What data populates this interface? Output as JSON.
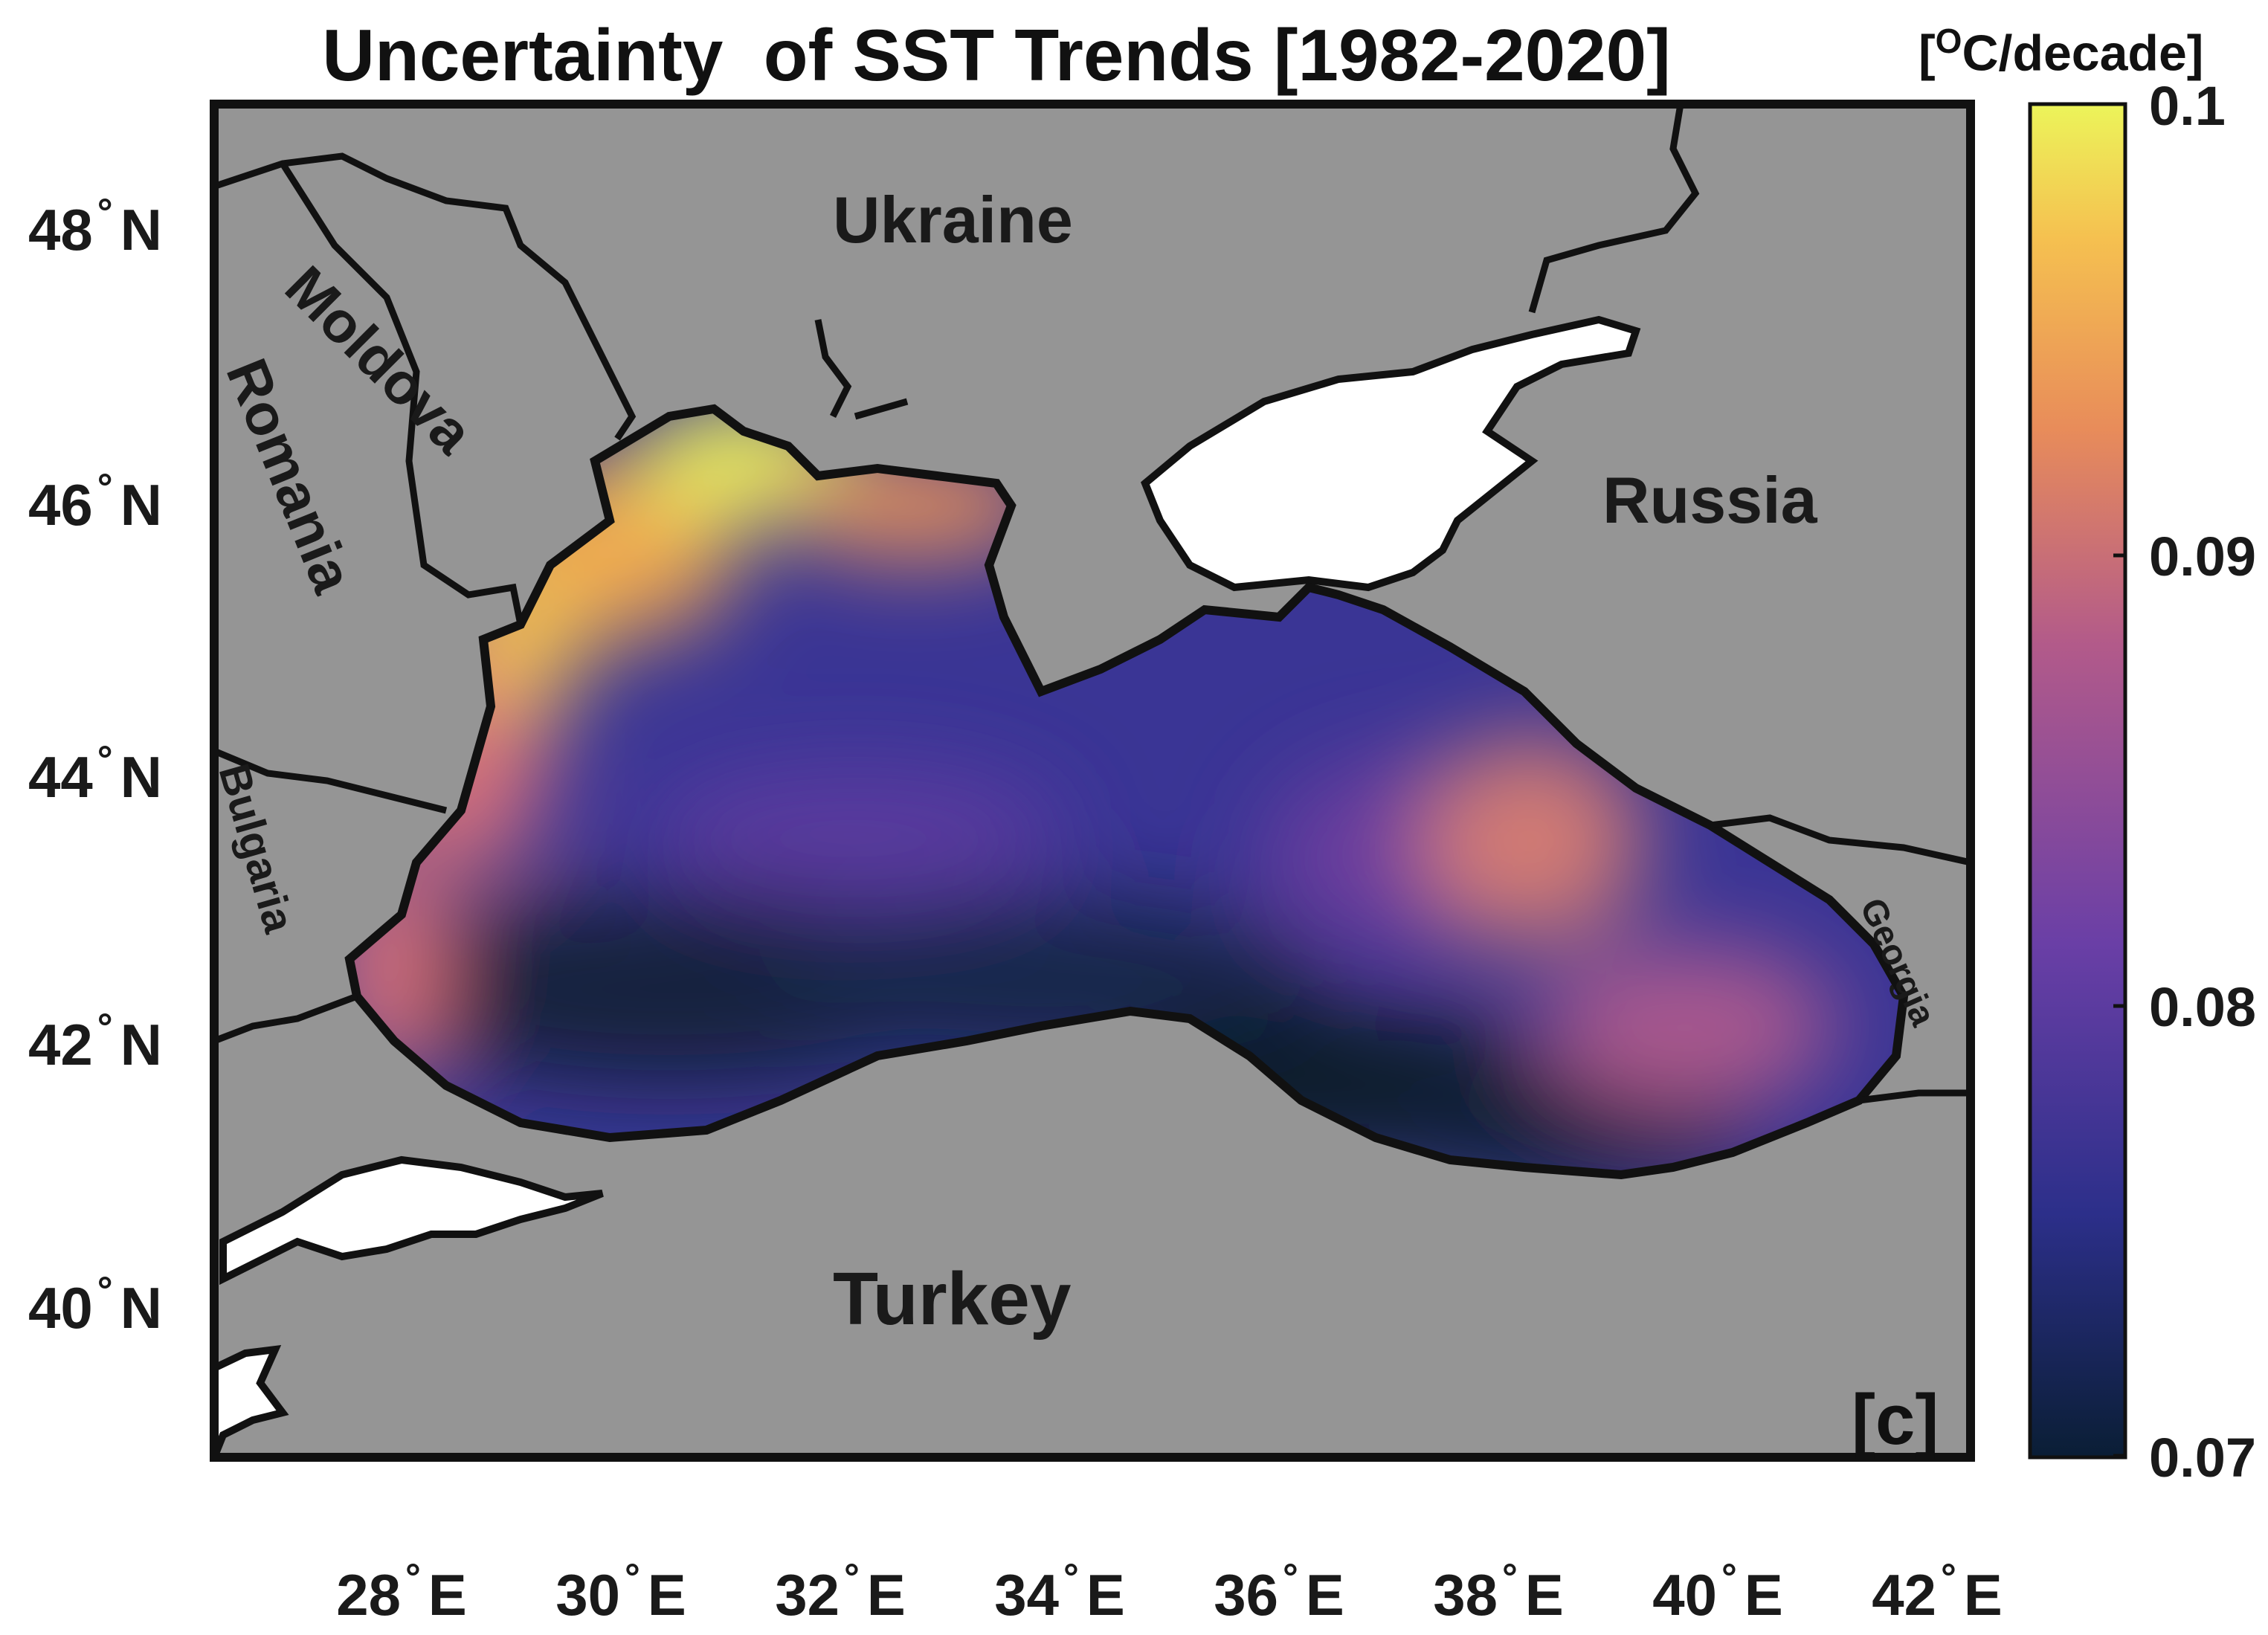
{
  "title": "Uncertainty  of SST Trends [1982-2020]",
  "colorbar": {
    "unit_prefix": "[",
    "unit_sup": "O",
    "unit_suffix": "C/decade]",
    "ticks": [
      "0.1",
      "0.09",
      "0.08",
      "0.07"
    ],
    "range": [
      0.07,
      0.1
    ],
    "colors": [
      "#0a1e35",
      "#2c2f8a",
      "#6a3fa6",
      "#b25a8a",
      "#e88c5a",
      "#f5c050",
      "#ecf45a"
    ]
  },
  "axes": {
    "lat_ticks": [
      {
        "value": "48",
        "hemi": "N"
      },
      {
        "value": "46",
        "hemi": "N"
      },
      {
        "value": "44",
        "hemi": "N"
      },
      {
        "value": "42",
        "hemi": "N"
      },
      {
        "value": "40",
        "hemi": "N"
      }
    ],
    "lon_ticks": [
      {
        "value": "28",
        "hemi": "E"
      },
      {
        "value": "30",
        "hemi": "E"
      },
      {
        "value": "32",
        "hemi": "E"
      },
      {
        "value": "34",
        "hemi": "E"
      },
      {
        "value": "36",
        "hemi": "E"
      },
      {
        "value": "38",
        "hemi": "E"
      },
      {
        "value": "40",
        "hemi": "E"
      },
      {
        "value": "42",
        "hemi": "E"
      }
    ]
  },
  "labels": {
    "ukraine": "Ukraine",
    "moldova": "Moldova",
    "romania": "Romania",
    "russia": "Russia",
    "bulgaria": "Bulgaria",
    "georgia": "Georgia",
    "turkey": "Turkey",
    "panel": "[c]"
  },
  "colors": {
    "land": "#959595",
    "border": "#111111",
    "background": "#ffffff"
  }
}
